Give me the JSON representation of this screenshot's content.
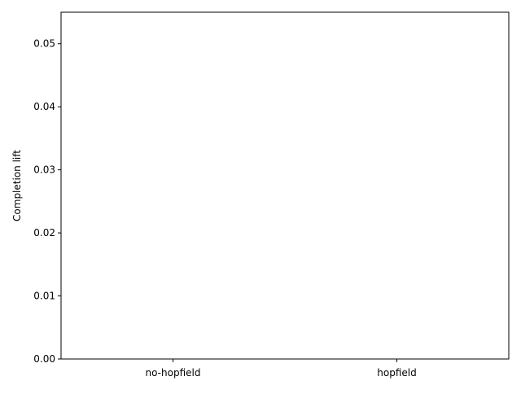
{
  "chart_data": {
    "type": "bar",
    "title": "",
    "xlabel": "",
    "ylabel": "Completion lift",
    "categories": [
      "no-hopfield",
      "hopfield"
    ],
    "values": [
      0,
      0
    ],
    "ylim": [
      0,
      0.055
    ],
    "yticks": [
      "0.00",
      "0.01",
      "0.02",
      "0.03",
      "0.04",
      "0.05"
    ],
    "grid": false,
    "legend": "none"
  }
}
